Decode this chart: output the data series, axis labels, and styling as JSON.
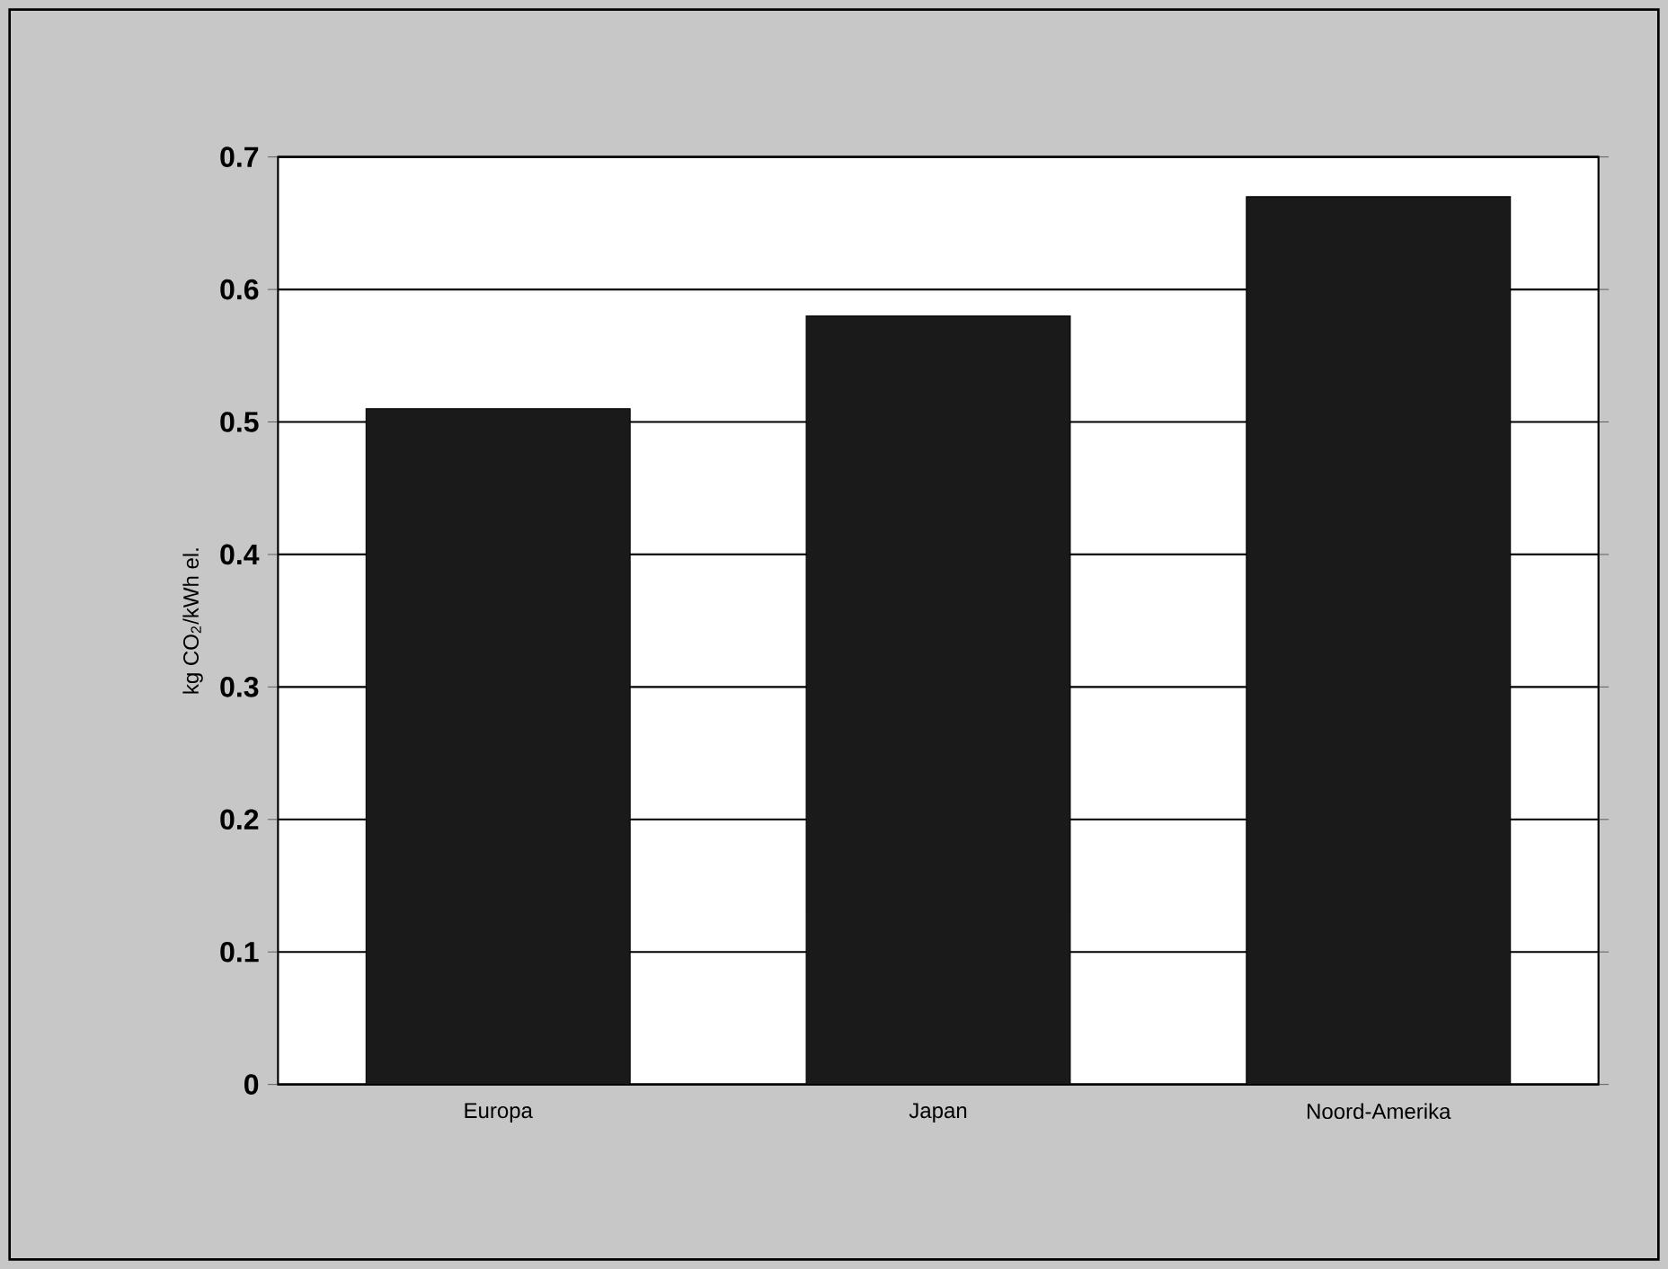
{
  "chart_data": {
    "type": "bar",
    "ylabel": "kg CO$_{2}$/kWh el.",
    "categories": [
      "Europa",
      "Japan",
      "Noord-Amerika"
    ],
    "values": [
      0.51,
      0.58,
      0.67
    ],
    "color": "#1a1a1a",
    "ylim": [
      0,
      0.7
    ],
    "yticks": [
      0,
      0.1,
      0.2,
      0.3,
      0.4,
      0.5,
      0.6,
      0.7
    ],
    "grid": "y"
  }
}
